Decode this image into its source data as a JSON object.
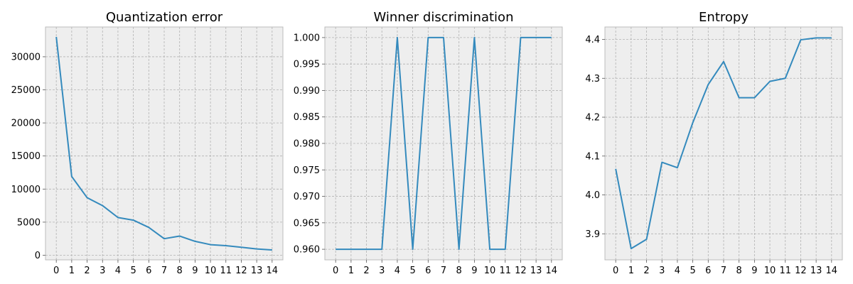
{
  "chart_data": [
    {
      "type": "line",
      "title": "Quantization error",
      "xlabel": "",
      "ylabel": "",
      "grid": true,
      "x": [
        0,
        1,
        2,
        3,
        4,
        5,
        6,
        7,
        8,
        9,
        10,
        11,
        12,
        13,
        14
      ],
      "xticks": [
        0,
        1,
        2,
        3,
        4,
        5,
        6,
        7,
        8,
        9,
        10,
        11,
        12,
        13,
        14
      ],
      "yticks": [
        0,
        5000,
        10000,
        15000,
        20000,
        25000,
        30000
      ],
      "ylim": [
        -700,
        34500
      ],
      "xlim": [
        -0.7,
        14.7
      ],
      "color": "#348abd",
      "series": [
        {
          "values": [
            33000,
            11900,
            8700,
            7500,
            5700,
            5300,
            4200,
            2500,
            2900,
            2100,
            1600,
            1450,
            1200,
            950,
            800
          ]
        }
      ]
    },
    {
      "type": "line",
      "title": "Winner discrimination",
      "xlabel": "",
      "ylabel": "",
      "grid": true,
      "x": [
        0,
        1,
        2,
        3,
        4,
        5,
        6,
        7,
        8,
        9,
        10,
        11,
        12,
        13,
        14
      ],
      "xticks": [
        0,
        1,
        2,
        3,
        4,
        5,
        6,
        7,
        8,
        9,
        10,
        11,
        12,
        13,
        14
      ],
      "yticks": [
        0.96,
        0.965,
        0.97,
        0.975,
        0.98,
        0.985,
        0.99,
        0.995,
        1.0
      ],
      "ytick_labels": [
        "0.960",
        "0.965",
        "0.970",
        "0.975",
        "0.980",
        "0.985",
        "0.990",
        "0.995",
        "1.000"
      ],
      "ylim": [
        0.958,
        1.002
      ],
      "xlim": [
        -0.7,
        14.7
      ],
      "color": "#348abd",
      "series": [
        {
          "values": [
            0.96,
            0.96,
            0.96,
            0.96,
            1.0,
            0.96,
            1.0,
            1.0,
            0.96,
            1.0,
            0.96,
            0.96,
            1.0,
            1.0,
            1.0
          ]
        }
      ]
    },
    {
      "type": "line",
      "title": "Entropy",
      "xlabel": "",
      "ylabel": "",
      "grid": true,
      "x": [
        0,
        1,
        2,
        3,
        4,
        5,
        6,
        7,
        8,
        9,
        10,
        11,
        12,
        13,
        14
      ],
      "xticks": [
        0,
        1,
        2,
        3,
        4,
        5,
        6,
        7,
        8,
        9,
        10,
        11,
        12,
        13,
        14
      ],
      "yticks": [
        3.9,
        4.0,
        4.1,
        4.2,
        4.3,
        4.4
      ],
      "ytick_labels": [
        "3.9",
        "4.0",
        "4.1",
        "4.2",
        "4.3",
        "4.4"
      ],
      "ylim": [
        3.833,
        4.432
      ],
      "xlim": [
        -0.7,
        14.7
      ],
      "color": "#348abd",
      "series": [
        {
          "values": [
            4.067,
            3.862,
            3.886,
            4.084,
            4.07,
            4.186,
            4.284,
            4.343,
            4.25,
            4.25,
            4.292,
            4.3,
            4.399,
            4.404,
            4.404
          ]
        }
      ]
    }
  ]
}
